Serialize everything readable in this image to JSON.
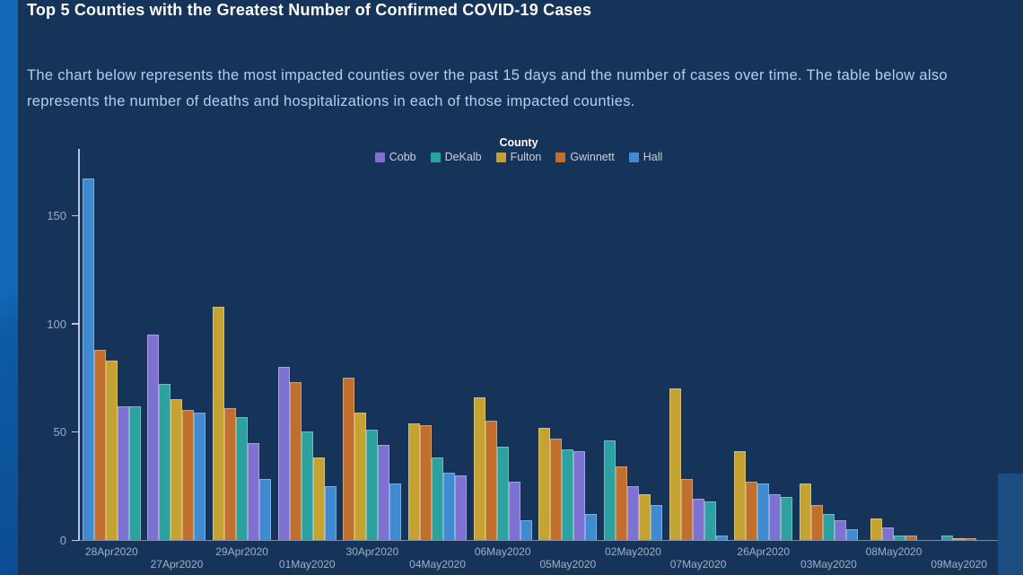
{
  "page": {
    "title": "Top 5 Counties with the Greatest Number of Confirmed COVID-19 Cases",
    "description": "The chart below represents the most impacted counties over the past 15 days and the number of cases over time. The table below also represents the number of deaths and hospitalizations in each of those impacted counties."
  },
  "chart_data": {
    "type": "bar",
    "title": "County",
    "legend": [
      "Cobb",
      "DeKalb",
      "Fulton",
      "Gwinnett",
      "Hall"
    ],
    "legend_position": "top-center",
    "series_colors": {
      "Cobb": "#7d72d2",
      "DeKalb": "#2da0a0",
      "Fulton": "#c4a332",
      "Gwinnett": "#c0702c",
      "Hall": "#3f8ad0"
    },
    "categories": [
      "28Apr2020",
      "27Apr2020",
      "29Apr2020",
      "01May2020",
      "30Apr2020",
      "04May2020",
      "06May2020",
      "05May2020",
      "02May2020",
      "07May2020",
      "26Apr2020",
      "03May2020",
      "08May2020",
      "09May2020"
    ],
    "series": [
      {
        "name": "Cobb",
        "values": [
          62,
          95,
          45,
          80,
          44,
          30,
          27,
          41,
          25,
          19,
          21,
          9,
          6,
          0
        ]
      },
      {
        "name": "DeKalb",
        "values": [
          62,
          72,
          57,
          50,
          51,
          38,
          43,
          42,
          46,
          18,
          20,
          12,
          2,
          2
        ]
      },
      {
        "name": "Fulton",
        "values": [
          83,
          65,
          108,
          38,
          59,
          54,
          66,
          52,
          21,
          70,
          41,
          26,
          10,
          1
        ]
      },
      {
        "name": "Gwinnett",
        "values": [
          88,
          60,
          61,
          73,
          75,
          53,
          55,
          47,
          34,
          28,
          27,
          16,
          2,
          1
        ]
      },
      {
        "name": "Hall",
        "values": [
          167,
          59,
          28,
          25,
          26,
          31,
          9,
          12,
          16,
          2,
          26,
          5,
          0,
          0
        ]
      }
    ],
    "xlabel": "",
    "ylabel": "",
    "ylim": [
      0,
      175
    ],
    "yticks": [
      0,
      50,
      100,
      150
    ],
    "grid": false,
    "bar_order": "bars sorted descending by value within each group, ties broken by legend order",
    "x_label_rows": "labels alternate between two rows (even-index categories on upper row)"
  },
  "theme": {
    "background": "#16335a",
    "left_stripe": "#1169b5",
    "corner_block": "#1b4d81",
    "axis_line": "#cdd6ee",
    "axis_text": "#9fb0c8",
    "title_text": "#fdfdfe",
    "body_text": "#b4cfec"
  }
}
